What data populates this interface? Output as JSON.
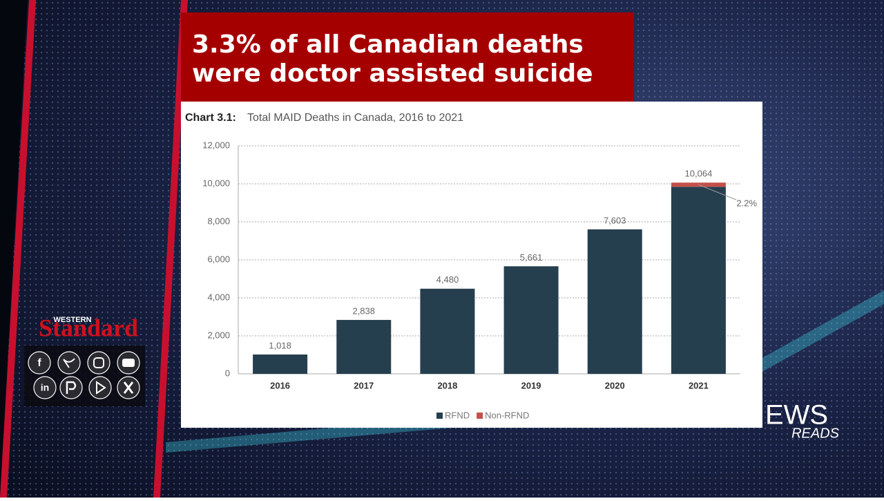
{
  "banner": {
    "line1": "3.3% of all Canadian deaths",
    "line2": "were doctor assisted suicide"
  },
  "logo": {
    "small": "WESTERN",
    "large": "Standard"
  },
  "social": {
    "facebook": "f",
    "linkedin": "in"
  },
  "watermark": {
    "top": "EWS",
    "bottom": "READS"
  },
  "chart_data": {
    "type": "bar",
    "stacked": true,
    "title": "Chart 3.1:",
    "subtitle": "Total MAID Deaths in Canada, 2016 to 2021",
    "categories": [
      "2016",
      "2017",
      "2018",
      "2019",
      "2020",
      "2021"
    ],
    "series": [
      {
        "name": "RFND",
        "color": "#263f4f",
        "values": [
          1018,
          2838,
          4480,
          5661,
          7603,
          9843
        ]
      },
      {
        "name": "Non-RFND",
        "color": "#c4504a",
        "values": [
          null,
          null,
          null,
          null,
          null,
          221
        ]
      }
    ],
    "totals": [
      1018,
      2838,
      4480,
      5661,
      7603,
      10064
    ],
    "total_labels": [
      "1,018",
      "2,838",
      "4,480",
      "5,661",
      "7,603",
      "10,064"
    ],
    "annotation": "2.2%",
    "ylim": [
      0,
      12000
    ],
    "yticks": [
      0,
      {
        "value": 2000,
        "label": "2,000"
      },
      {
        "value": 4000,
        "label": "4,000"
      },
      {
        "value": 6000,
        "label": "6,000"
      },
      {
        "value": 8000,
        "label": "8,000"
      },
      {
        "value": 10000,
        "label": "10,000"
      },
      {
        "value": 12000,
        "label": "12,000"
      }
    ],
    "grid": true,
    "legend": "bottom"
  }
}
